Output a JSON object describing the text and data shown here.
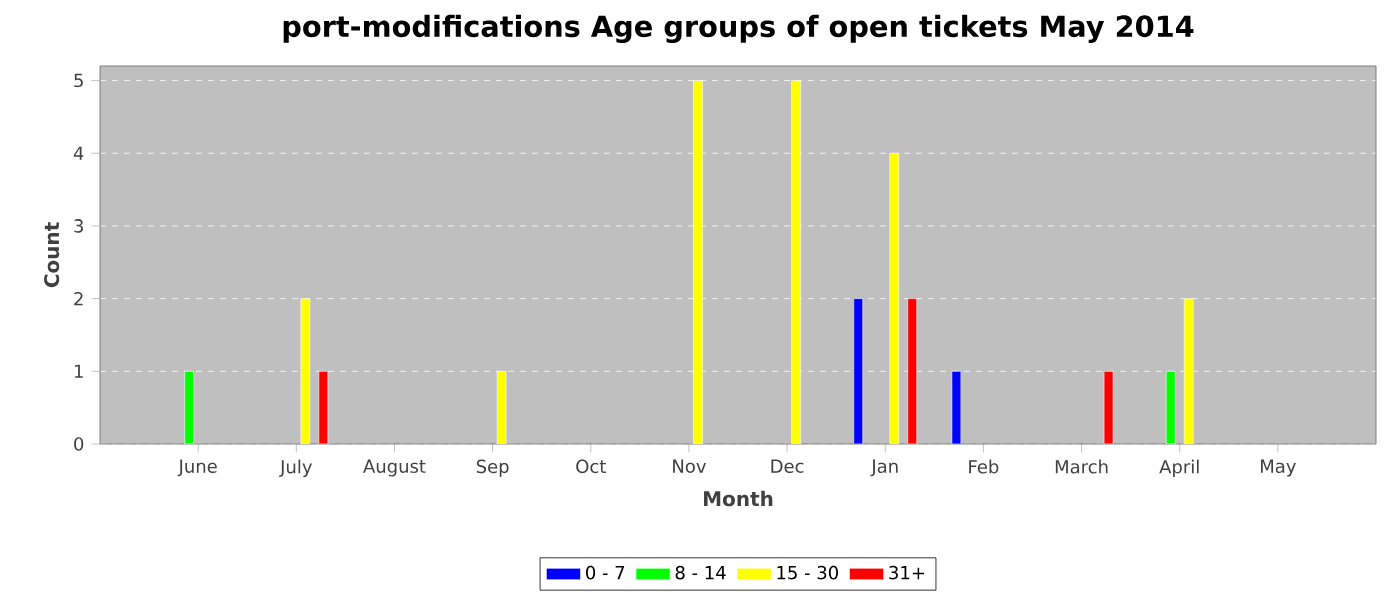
{
  "chart_data": {
    "type": "bar",
    "title": "port-modifications Age groups of open tickets May 2014",
    "xlabel": "Month",
    "ylabel": "Count",
    "categories": [
      "June",
      "July",
      "August",
      "Sep",
      "Oct",
      "Nov",
      "Dec",
      "Jan",
      "Feb",
      "March",
      "April",
      "May"
    ],
    "series": [
      {
        "name": "0 - 7",
        "color": "#0000ff",
        "values": [
          null,
          null,
          null,
          null,
          null,
          null,
          null,
          2,
          1,
          null,
          null,
          null
        ]
      },
      {
        "name": "8 - 14",
        "color": "#00ff00",
        "values": [
          1,
          null,
          null,
          null,
          null,
          null,
          null,
          null,
          null,
          null,
          1,
          null
        ]
      },
      {
        "name": "15 - 30",
        "color": "#ffff00",
        "values": [
          null,
          2,
          null,
          1,
          null,
          5,
          5,
          4,
          null,
          null,
          2,
          null
        ]
      },
      {
        "name": "31+",
        "color": "#ff0000",
        "values": [
          null,
          1,
          null,
          null,
          null,
          null,
          null,
          2,
          null,
          1,
          null,
          null
        ]
      }
    ],
    "ylim": [
      0,
      5.2
    ],
    "yticks": [
      0,
      1,
      2,
      3,
      4,
      5
    ],
    "grid": "y",
    "legend": "bottom"
  }
}
